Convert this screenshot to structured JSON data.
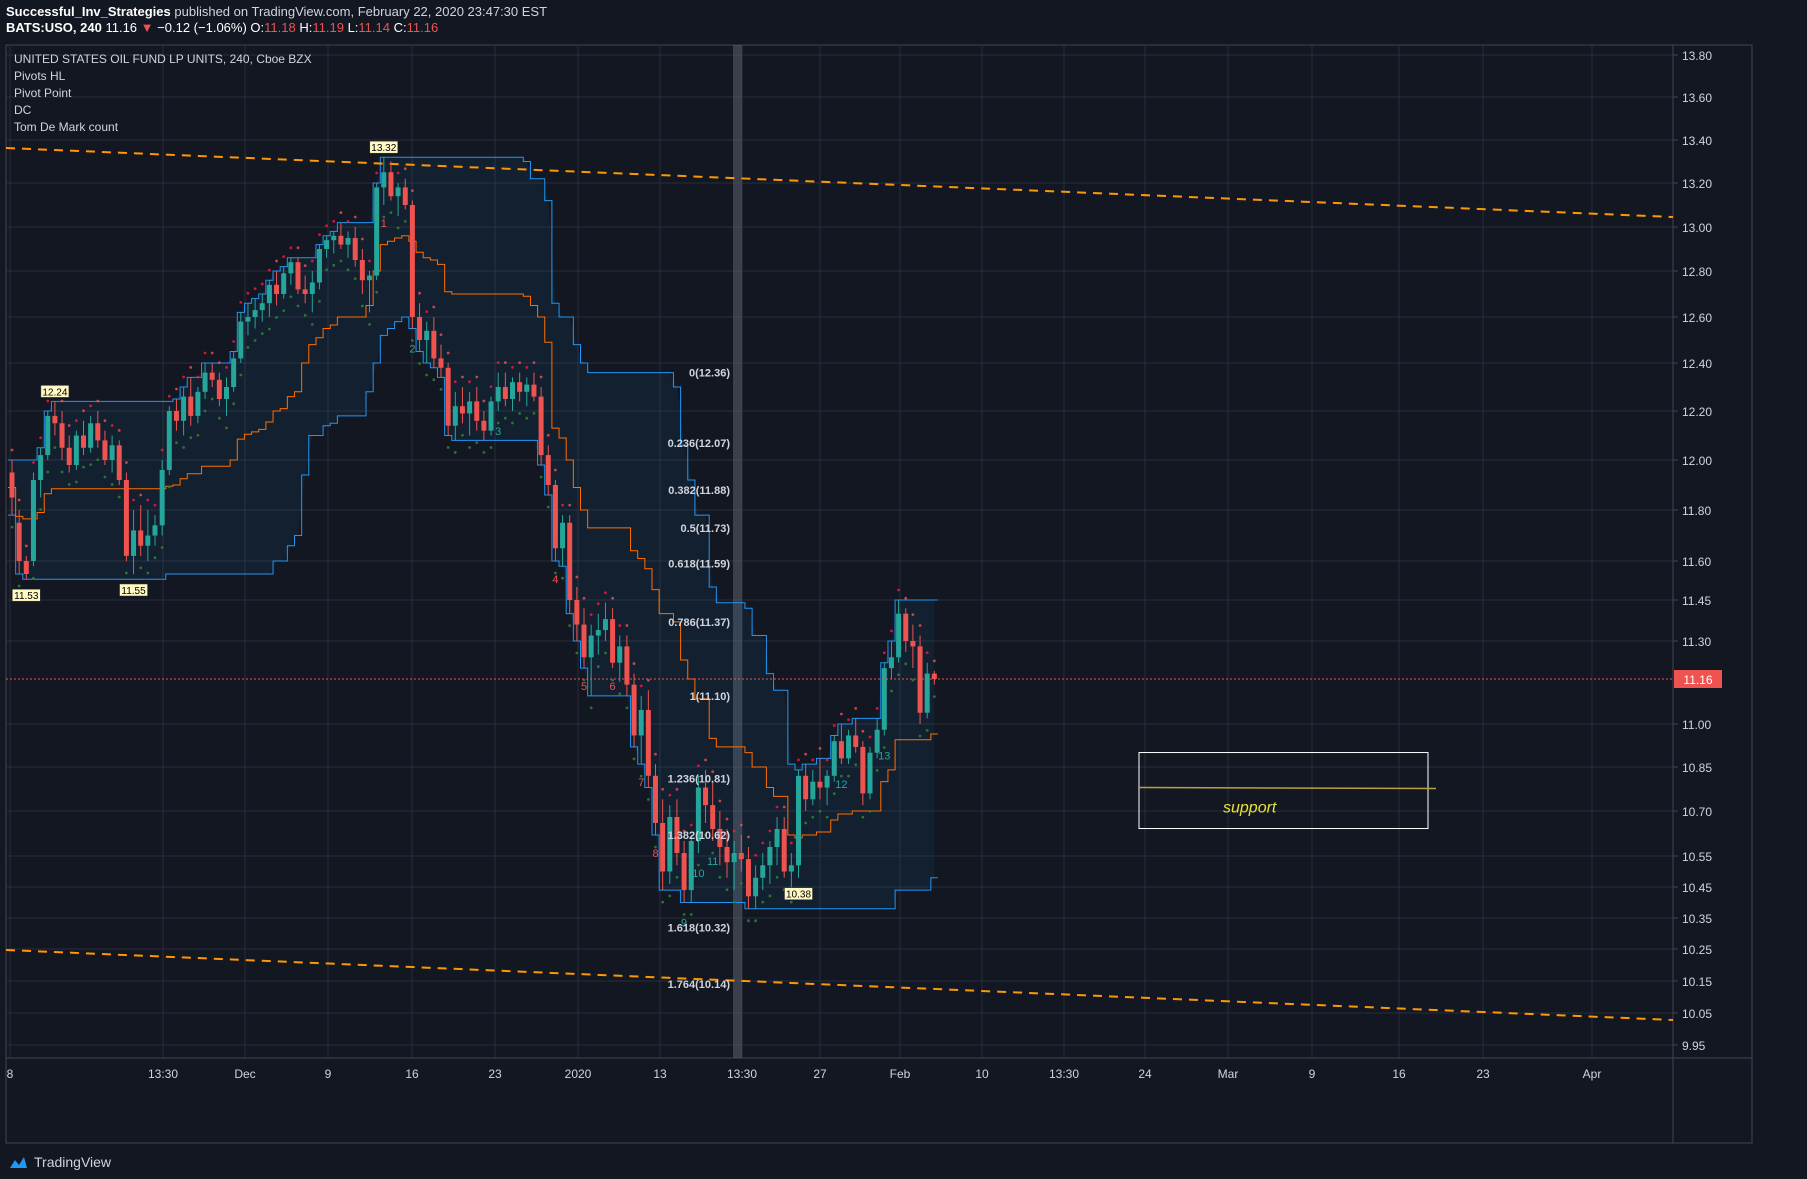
{
  "header": {
    "author": "Successful_Inv_Strategies",
    "published_text": "published on TradingView.com, February 22, 2020 23:47:30 EST",
    "symbol": "BATS:USO, 240",
    "last": "11.16",
    "change": "−0.12 (−1.06%)",
    "o_label": "O:",
    "o_val": "11.18",
    "h_label": "H:",
    "h_val": "11.19",
    "l_label": "L:",
    "l_val": "11.14",
    "c_label": "C:",
    "c_val": "11.16"
  },
  "indicators": {
    "title": "UNITED STATES OIL FUND LP UNITS, 240, Cboe BZX",
    "items": [
      "Pivots HL",
      "Pivot Point",
      "DC",
      "Tom De Mark count"
    ]
  },
  "footer": {
    "brand": "TradingView"
  },
  "colors": {
    "background": "#131722",
    "grid": "#2a2e39",
    "up": "#26a69a",
    "down": "#ef5350",
    "trendline": "#ff9800",
    "dc_band": "#2196f3",
    "dc_mid": "#ff6d00",
    "support_label": "#e8e337"
  },
  "chart_data": {
    "type": "candlestick",
    "y_ticks": [
      "13.80",
      "13.60",
      "13.40",
      "13.20",
      "13.00",
      "12.80",
      "12.60",
      "12.40",
      "12.20",
      "12.00",
      "11.80",
      "11.60",
      "11.45",
      "11.30",
      "11.16",
      "11.00",
      "10.85",
      "10.70",
      "10.55",
      "10.45",
      "10.35",
      "10.25",
      "10.15",
      "10.05",
      "9.95"
    ],
    "x_ticks": [
      "8",
      "13:30",
      "Dec",
      "9",
      "16",
      "23",
      "2020",
      "13",
      "13:30",
      "27",
      "Feb",
      "10",
      "13:30",
      "24",
      "Mar",
      "9",
      "16",
      "23",
      "Apr"
    ],
    "last_price": "11.16",
    "pivot_labels": [
      "12.24",
      "11.53",
      "11.55",
      "13.32",
      "10.38"
    ],
    "fib_levels": [
      {
        "label": "0(12.36)",
        "value": 12.36
      },
      {
        "label": "0.236(12.07)",
        "value": 12.07
      },
      {
        "label": "0.382(11.88)",
        "value": 11.88
      },
      {
        "label": "0.5(11.73)",
        "value": 11.73
      },
      {
        "label": "0.618(11.59)",
        "value": 11.59
      },
      {
        "label": "0.786(11.37)",
        "value": 11.37
      },
      {
        "label": "1(11.10)",
        "value": 11.1
      },
      {
        "label": "1.236(10.81)",
        "value": 10.81
      },
      {
        "label": "1.382(10.62)",
        "value": 10.62
      },
      {
        "label": "1.618(10.32)",
        "value": 10.32
      },
      {
        "label": "1.764(10.14)",
        "value": 10.14
      }
    ],
    "annotation": "support",
    "support_level": 10.78,
    "demark_labels": [
      "1",
      "2",
      "3",
      "4",
      "5",
      "6",
      "7",
      "8",
      "9",
      "10",
      "11",
      "12",
      "13"
    ]
  }
}
